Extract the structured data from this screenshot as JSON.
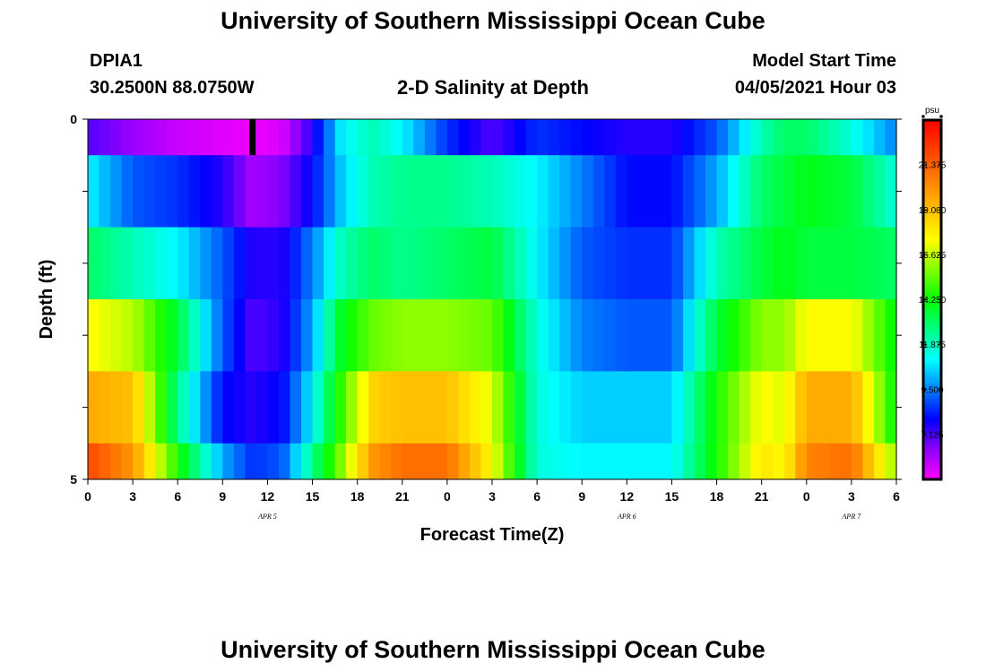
{
  "header": {
    "title": "University of Southern Mississippi Ocean Cube",
    "station_id": "DPIA1",
    "location": "30.2500N  88.0750W",
    "subtitle": "2-D Salinity at Depth",
    "model_label": "Model Start Time",
    "model_time": "04/05/2021 Hour 03"
  },
  "footer": {
    "title": "University of Southern Mississippi Ocean Cube"
  },
  "colors": {
    "ramp": [
      "#ff00ff",
      "#8f00ff",
      "#0000ff",
      "#0080ff",
      "#00ffff",
      "#00ff80",
      "#00ff00",
      "#80ff00",
      "#ffff00",
      "#ffc000",
      "#ff8000",
      "#ff4000",
      "#ff0000"
    ]
  },
  "chart_data": {
    "type": "heatmap",
    "title": "2-D Salinity at Depth",
    "xlabel": "Forecast Time(Z)",
    "ylabel": "Depth (ft)",
    "x_hours": [
      0,
      54
    ],
    "y_range": [
      0,
      5
    ],
    "x_tick_labels": [
      "0",
      "3",
      "6",
      "9",
      "12",
      "15",
      "18",
      "21",
      "0",
      "3",
      "6",
      "9",
      "12",
      "15",
      "18",
      "21",
      "0",
      "3",
      "6"
    ],
    "y_tick_labels": [
      "0",
      "5"
    ],
    "date_labels": [
      {
        "text": "APR 5",
        "hour": 12
      },
      {
        "text": "APR 6",
        "hour": 36
      },
      {
        "text": "APR 7",
        "hour": 51
      }
    ],
    "marker_hour": 11,
    "colorbar": {
      "unit": "psu",
      "min": 4.75,
      "max": 23.75,
      "tick_labels": [
        "21.375",
        "19.000",
        "16.625",
        "14.250",
        "11.875",
        "9.500",
        "7.125"
      ]
    },
    "knot_hours": [
      0,
      3,
      6,
      9,
      11,
      13,
      15,
      17,
      19,
      21,
      24,
      27,
      30,
      33,
      36,
      39,
      42,
      45,
      46.5,
      48,
      51,
      54
    ],
    "layers": [
      {
        "depth": [
          0.0,
          0.5
        ],
        "values": [
          7.0,
          6.2,
          5.5,
          5.2,
          5.0,
          5.3,
          7.5,
          11.0,
          12.0,
          11.0,
          8.5,
          7.0,
          8.5,
          8.0,
          7.5,
          7.5,
          9.0,
          12.0,
          13.0,
          13.0,
          11.5,
          9.5
        ]
      },
      {
        "depth": [
          0.5,
          1.5
        ],
        "values": [
          11.0,
          9.0,
          8.5,
          7.5,
          6.0,
          6.5,
          8.0,
          10.5,
          12.0,
          12.5,
          12.5,
          12.0,
          11.0,
          9.5,
          8.0,
          8.0,
          10.0,
          13.0,
          13.5,
          14.0,
          13.5,
          11.5
        ]
      },
      {
        "depth": [
          1.5,
          2.5
        ],
        "values": [
          13.0,
          12.0,
          11.0,
          9.0,
          7.5,
          7.5,
          9.5,
          12.0,
          13.0,
          12.5,
          13.0,
          13.5,
          11.0,
          9.0,
          8.5,
          8.5,
          12.0,
          13.5,
          14.0,
          13.5,
          13.5,
          13.0
        ]
      },
      {
        "depth": [
          2.5,
          3.5
        ],
        "values": [
          17.5,
          16.5,
          13.5,
          9.0,
          7.0,
          7.5,
          10.0,
          14.0,
          15.5,
          16.0,
          16.0,
          15.5,
          11.5,
          9.5,
          9.0,
          9.0,
          13.5,
          16.0,
          16.0,
          17.5,
          17.5,
          14.0
        ]
      },
      {
        "depth": [
          3.5,
          4.5
        ],
        "values": [
          19.5,
          19.0,
          12.5,
          8.0,
          7.5,
          8.0,
          11.0,
          15.0,
          18.5,
          19.0,
          19.0,
          17.0,
          11.5,
          10.5,
          10.5,
          10.5,
          14.5,
          17.5,
          17.0,
          19.5,
          19.5,
          14.0
        ]
      },
      {
        "depth": [
          4.5,
          5.0
        ],
        "values": [
          22.0,
          20.0,
          14.5,
          10.0,
          8.5,
          9.0,
          12.5,
          16.0,
          20.0,
          21.0,
          21.0,
          17.5,
          11.5,
          11.0,
          11.0,
          11.0,
          14.5,
          18.0,
          17.5,
          20.5,
          21.0,
          16.0
        ]
      }
    ]
  }
}
